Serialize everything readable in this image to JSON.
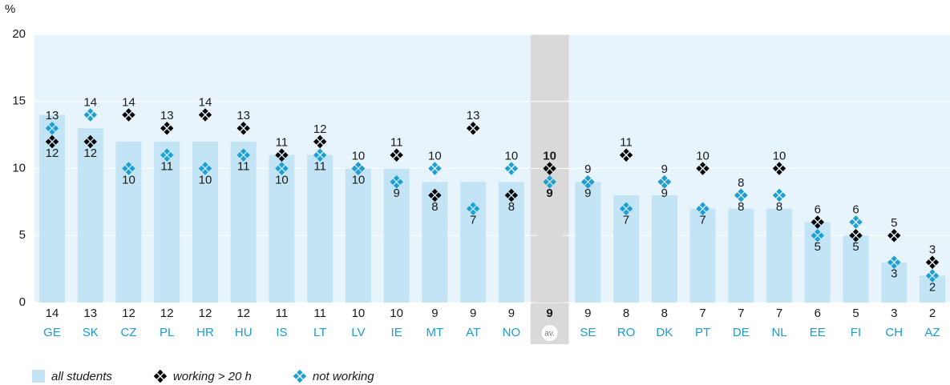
{
  "chart_data": {
    "type": "bar",
    "ylabel": "%",
    "categories": [
      "GE",
      "SK",
      "CZ",
      "PL",
      "HR",
      "HU",
      "IS",
      "LT",
      "LV",
      "IE",
      "MT",
      "AT",
      "NO",
      "av.",
      "SE",
      "RO",
      "DK",
      "PT",
      "DE",
      "NL",
      "EE",
      "FI",
      "CH",
      "AZ"
    ],
    "highlight": 13,
    "series": [
      {
        "name": "all students",
        "type": "bar",
        "color": "#c3e4f5",
        "values": [
          14,
          13,
          12,
          12,
          12,
          12,
          11,
          11,
          10,
          10,
          9,
          9,
          9,
          9,
          9,
          8,
          8,
          7,
          7,
          7,
          6,
          5,
          3,
          2
        ]
      },
      {
        "name": "working > 20 h",
        "type": "marker",
        "color": "#000000",
        "values": [
          12,
          12,
          14,
          13,
          14,
          13,
          11,
          12,
          10,
          11,
          8,
          13,
          8,
          10,
          9,
          11,
          9,
          10,
          8,
          10,
          6,
          5,
          5,
          3
        ]
      },
      {
        "name": "not working",
        "type": "marker",
        "color": "#1aa0d2",
        "values": [
          13,
          14,
          10,
          11,
          10,
          11,
          10,
          11,
          10,
          9,
          10,
          7,
          10,
          9,
          9,
          7,
          9,
          7,
          8,
          8,
          5,
          6,
          3,
          2
        ]
      }
    ],
    "ylim": [
      0,
      20
    ],
    "yticks": [
      0,
      5,
      10,
      15,
      20
    ],
    "grid": true
  }
}
